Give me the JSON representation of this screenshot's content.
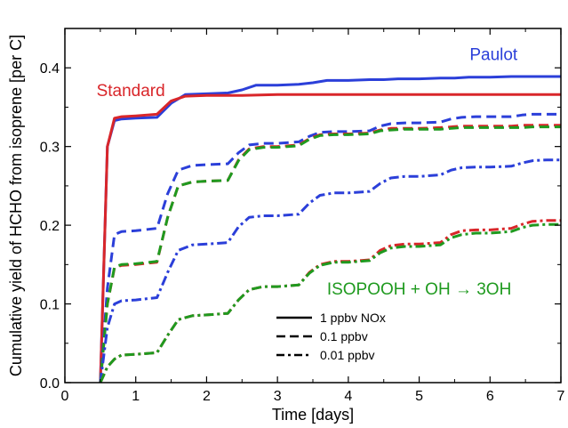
{
  "chart_data": {
    "type": "line",
    "title": "",
    "xlabel": "Time [days]",
    "ylabel": "Cumulative yield of HCHO from isoprene [per C]",
    "xlim": [
      0,
      7
    ],
    "ylim": [
      0,
      0.45
    ],
    "xticks": [
      0,
      1,
      2,
      3,
      4,
      5,
      6,
      7
    ],
    "xtick_labels": [
      "0",
      "1",
      "2",
      "3",
      "4",
      "5",
      "6",
      "7"
    ],
    "yticks": [
      0.0,
      0.1,
      0.2,
      0.3,
      0.4
    ],
    "ytick_labels": [
      "0.0",
      "0.1",
      "0.2",
      "0.3",
      "0.4"
    ],
    "grid": false,
    "legend": {
      "placement": "bottom-center",
      "entries": [
        {
          "label": "1 ppbv NOx",
          "dash": "solid"
        },
        {
          "label": "0.1 ppbv",
          "dash": "dashed"
        },
        {
          "label": "0.01 ppbv",
          "dash": "dashdot"
        }
      ]
    },
    "annotations": [
      {
        "text": "Paulot",
        "color": "#2b3fd9",
        "x": 6.05,
        "y": 0.41
      },
      {
        "text": "Standard",
        "color": "#d9262a",
        "x": 0.93,
        "y": 0.364
      },
      {
        "text": "ISOPOOH + OH → 3OH",
        "color": "#1f9a1f",
        "x": 5.0,
        "y": 0.112
      }
    ],
    "series": [
      {
        "scheme": "Paulot",
        "color": "#2b3fd9",
        "dash": "solid",
        "x": [
          0.5,
          0.6,
          0.7,
          0.8,
          1.0,
          1.3,
          1.5,
          1.7,
          2.0,
          2.3,
          2.5,
          2.7,
          3.0,
          3.3,
          3.5,
          3.7,
          4.0,
          4.3,
          4.5,
          4.7,
          5.0,
          5.3,
          5.5,
          5.7,
          6.0,
          6.3,
          6.5,
          6.7,
          7.0
        ],
        "y": [
          0.0,
          0.3,
          0.333,
          0.335,
          0.336,
          0.337,
          0.355,
          0.366,
          0.367,
          0.368,
          0.372,
          0.378,
          0.378,
          0.379,
          0.381,
          0.384,
          0.384,
          0.385,
          0.385,
          0.386,
          0.386,
          0.387,
          0.387,
          0.388,
          0.388,
          0.389,
          0.389,
          0.389,
          0.389
        ]
      },
      {
        "scheme": "Standard",
        "color": "#d9262a",
        "dash": "solid",
        "x": [
          0.5,
          0.6,
          0.7,
          0.8,
          1.0,
          1.3,
          1.5,
          1.7,
          2.0,
          2.5,
          3.0,
          4.0,
          5.0,
          6.0,
          7.0
        ],
        "y": [
          0.0,
          0.3,
          0.336,
          0.338,
          0.339,
          0.341,
          0.358,
          0.364,
          0.365,
          0.365,
          0.366,
          0.366,
          0.366,
          0.366,
          0.366
        ]
      },
      {
        "scheme": "Paulot",
        "color": "#2b3fd9",
        "dash": "dashed",
        "x": [
          0.5,
          0.6,
          0.7,
          0.8,
          1.0,
          1.3,
          1.45,
          1.6,
          1.8,
          2.0,
          2.3,
          2.45,
          2.6,
          2.8,
          3.0,
          3.3,
          3.45,
          3.6,
          3.8,
          4.0,
          4.3,
          4.45,
          4.6,
          4.8,
          5.0,
          5.3,
          5.45,
          5.6,
          5.8,
          6.0,
          6.3,
          6.45,
          6.6,
          6.8,
          7.0
        ],
        "y": [
          0.0,
          0.12,
          0.188,
          0.192,
          0.193,
          0.196,
          0.24,
          0.27,
          0.276,
          0.277,
          0.278,
          0.292,
          0.302,
          0.304,
          0.304,
          0.306,
          0.313,
          0.318,
          0.319,
          0.319,
          0.32,
          0.326,
          0.329,
          0.33,
          0.33,
          0.331,
          0.335,
          0.337,
          0.338,
          0.338,
          0.338,
          0.34,
          0.341,
          0.341,
          0.341
        ]
      },
      {
        "scheme": "Standard",
        "color": "#d9262a",
        "dash": "dashed",
        "x": [
          0.5,
          0.6,
          0.7,
          0.8,
          1.0,
          1.3,
          1.45,
          1.6,
          1.8,
          2.0,
          2.3,
          2.45,
          2.6,
          2.8,
          3.0,
          3.3,
          3.45,
          3.6,
          3.8,
          4.0,
          4.3,
          4.45,
          4.6,
          4.8,
          5.0,
          5.3,
          5.45,
          5.6,
          5.8,
          6.0,
          6.3,
          6.45,
          6.6,
          6.8,
          7.0
        ],
        "y": [
          0.0,
          0.1,
          0.146,
          0.149,
          0.15,
          0.153,
          0.21,
          0.25,
          0.255,
          0.256,
          0.257,
          0.283,
          0.297,
          0.3,
          0.3,
          0.302,
          0.31,
          0.315,
          0.316,
          0.316,
          0.317,
          0.321,
          0.323,
          0.323,
          0.323,
          0.324,
          0.325,
          0.326,
          0.326,
          0.326,
          0.326,
          0.327,
          0.327,
          0.327,
          0.327
        ]
      },
      {
        "scheme": "ISOPOOH + OH → 3OH",
        "color": "#1f9a1f",
        "dash": "dashed",
        "x": [
          0.5,
          0.6,
          0.7,
          0.8,
          1.0,
          1.3,
          1.45,
          1.6,
          1.8,
          2.0,
          2.3,
          2.45,
          2.6,
          2.8,
          3.0,
          3.3,
          3.45,
          3.6,
          3.8,
          4.0,
          4.3,
          4.45,
          4.6,
          4.8,
          5.0,
          5.3,
          5.45,
          5.6,
          5.8,
          6.0,
          6.3,
          6.45,
          6.6,
          6.8,
          7.0
        ],
        "y": [
          0.0,
          0.1,
          0.147,
          0.15,
          0.151,
          0.154,
          0.21,
          0.25,
          0.255,
          0.256,
          0.257,
          0.282,
          0.296,
          0.299,
          0.299,
          0.301,
          0.309,
          0.314,
          0.315,
          0.315,
          0.316,
          0.32,
          0.321,
          0.322,
          0.322,
          0.322,
          0.323,
          0.324,
          0.324,
          0.324,
          0.324,
          0.324,
          0.325,
          0.325,
          0.325
        ]
      },
      {
        "scheme": "Paulot",
        "color": "#2b3fd9",
        "dash": "dashdot",
        "x": [
          0.5,
          0.6,
          0.7,
          0.8,
          1.0,
          1.3,
          1.45,
          1.6,
          1.8,
          2.0,
          2.3,
          2.45,
          2.6,
          2.8,
          3.0,
          3.3,
          3.45,
          3.6,
          3.8,
          4.0,
          4.3,
          4.45,
          4.6,
          4.8,
          5.0,
          5.3,
          5.45,
          5.6,
          5.8,
          6.0,
          6.3,
          6.45,
          6.6,
          6.8,
          7.0
        ],
        "y": [
          0.0,
          0.07,
          0.1,
          0.104,
          0.105,
          0.108,
          0.14,
          0.168,
          0.175,
          0.176,
          0.178,
          0.198,
          0.21,
          0.212,
          0.212,
          0.214,
          0.228,
          0.238,
          0.241,
          0.241,
          0.243,
          0.253,
          0.26,
          0.262,
          0.262,
          0.264,
          0.27,
          0.273,
          0.274,
          0.274,
          0.275,
          0.279,
          0.282,
          0.283,
          0.283
        ]
      },
      {
        "scheme": "Standard",
        "color": "#d9262a",
        "dash": "dashdot",
        "x": [
          0.5,
          0.6,
          0.7,
          0.8,
          1.0,
          1.3,
          1.45,
          1.6,
          1.8,
          2.0,
          2.3,
          2.45,
          2.6,
          2.8,
          3.0,
          3.3,
          3.45,
          3.6,
          3.8,
          4.0,
          4.3,
          4.45,
          4.6,
          4.8,
          5.0,
          5.3,
          5.45,
          5.6,
          5.8,
          6.0,
          6.3,
          6.45,
          6.6,
          6.8,
          7.0
        ],
        "y": [
          0.0,
          0.02,
          0.03,
          0.035,
          0.036,
          0.038,
          0.06,
          0.08,
          0.085,
          0.086,
          0.088,
          0.105,
          0.118,
          0.122,
          0.122,
          0.124,
          0.14,
          0.15,
          0.154,
          0.154,
          0.156,
          0.168,
          0.174,
          0.176,
          0.176,
          0.178,
          0.188,
          0.193,
          0.194,
          0.194,
          0.196,
          0.201,
          0.205,
          0.206,
          0.206
        ]
      },
      {
        "scheme": "ISOPOOH + OH → 3OH",
        "color": "#1f9a1f",
        "dash": "dashdot",
        "x": [
          0.5,
          0.6,
          0.7,
          0.8,
          1.0,
          1.3,
          1.45,
          1.6,
          1.8,
          2.0,
          2.3,
          2.45,
          2.6,
          2.8,
          3.0,
          3.3,
          3.45,
          3.6,
          3.8,
          4.0,
          4.3,
          4.45,
          4.6,
          4.8,
          5.0,
          5.3,
          5.45,
          5.6,
          5.8,
          6.0,
          6.3,
          6.45,
          6.6,
          6.8,
          7.0
        ],
        "y": [
          0.0,
          0.02,
          0.03,
          0.035,
          0.036,
          0.038,
          0.06,
          0.08,
          0.085,
          0.086,
          0.088,
          0.105,
          0.118,
          0.122,
          0.122,
          0.124,
          0.139,
          0.149,
          0.153,
          0.153,
          0.155,
          0.165,
          0.171,
          0.173,
          0.173,
          0.175,
          0.184,
          0.188,
          0.19,
          0.19,
          0.192,
          0.197,
          0.2,
          0.201,
          0.201
        ]
      }
    ]
  }
}
